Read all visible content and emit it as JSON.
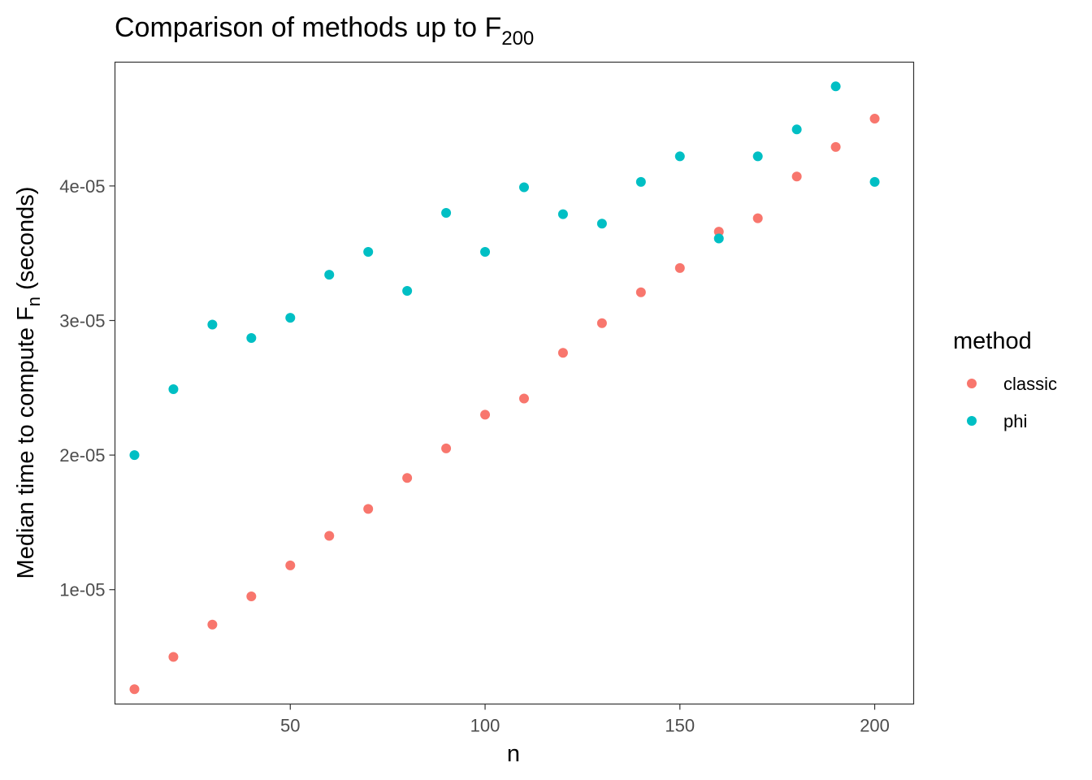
{
  "chart_data": {
    "type": "scatter",
    "title": "Comparison of methods up to F",
    "title_subscript": "200",
    "xlabel": "n",
    "ylabel_main": "Median time to compute F",
    "ylabel_subscript": "n",
    "ylabel_suffix": " (seconds)",
    "xlim": [
      5,
      210
    ],
    "ylim": [
      1.5e-06,
      4.92e-05
    ],
    "x_ticks": [
      50,
      100,
      150,
      200
    ],
    "x_tick_labels": [
      "50",
      "100",
      "150",
      "200"
    ],
    "y_ticks": [
      1e-05,
      2e-05,
      3e-05,
      4e-05
    ],
    "y_tick_labels": [
      "1e-05",
      "2e-05",
      "3e-05",
      "4e-05"
    ],
    "grid": false,
    "legend": {
      "title": "method",
      "placement": "right"
    },
    "series": [
      {
        "name": "classic",
        "color": "#F8766D",
        "x": [
          10,
          20,
          30,
          40,
          50,
          60,
          70,
          80,
          90,
          100,
          110,
          120,
          130,
          140,
          150,
          160,
          170,
          180,
          190,
          200
        ],
        "y": [
          2.6e-06,
          5e-06,
          7.4e-06,
          9.5e-06,
          1.18e-05,
          1.4e-05,
          1.6e-05,
          1.83e-05,
          2.05e-05,
          2.3e-05,
          2.42e-05,
          2.76e-05,
          2.98e-05,
          3.21e-05,
          3.39e-05,
          3.66e-05,
          3.76e-05,
          4.07e-05,
          4.29e-05,
          4.5e-05
        ]
      },
      {
        "name": "phi",
        "color": "#00BFC4",
        "x": [
          10,
          20,
          30,
          40,
          50,
          60,
          70,
          80,
          90,
          100,
          110,
          120,
          130,
          140,
          150,
          160,
          170,
          180,
          190,
          200
        ],
        "y": [
          2e-05,
          2.49e-05,
          2.97e-05,
          2.87e-05,
          3.02e-05,
          3.34e-05,
          3.51e-05,
          3.22e-05,
          3.8e-05,
          3.51e-05,
          3.99e-05,
          3.79e-05,
          3.72e-05,
          4.03e-05,
          4.22e-05,
          3.61e-05,
          4.22e-05,
          4.42e-05,
          4.74e-05,
          4.03e-05
        ]
      }
    ]
  }
}
